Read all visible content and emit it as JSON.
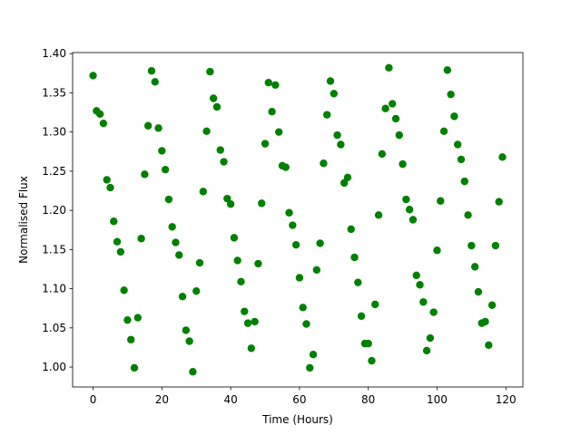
{
  "chart_data": {
    "type": "scatter",
    "x_label": "Time (Hours)",
    "y_label": "Normalised Flux",
    "color": "#008000",
    "x": [
      0,
      1,
      2,
      3,
      4,
      5,
      6,
      7,
      8,
      9,
      10,
      11,
      12,
      13,
      14,
      15,
      16,
      17,
      18,
      19,
      20,
      21,
      22,
      23,
      24,
      25,
      26,
      27,
      28,
      29,
      30,
      31,
      32,
      33,
      34,
      35,
      36,
      37,
      38,
      39,
      40,
      41,
      42,
      43,
      44,
      45,
      46,
      47,
      48,
      49,
      50,
      51,
      52,
      53,
      54,
      55,
      56,
      57,
      58,
      59,
      60,
      61,
      62,
      63,
      64,
      65,
      66,
      67,
      68,
      69,
      70,
      71,
      72,
      73,
      74,
      75,
      76,
      77,
      78,
      79,
      80,
      81,
      82,
      83,
      84,
      85,
      86,
      87,
      88,
      89,
      90,
      91,
      92,
      93,
      94,
      95,
      96,
      97,
      98,
      99,
      100,
      101,
      102,
      103,
      104,
      105,
      106,
      107,
      108,
      109,
      110,
      111,
      112,
      113,
      114,
      115,
      116,
      117,
      118,
      119
    ],
    "values": [
      1.372,
      1.327,
      1.323,
      1.311,
      1.239,
      1.229,
      1.186,
      1.16,
      1.147,
      1.098,
      1.06,
      1.035,
      0.999,
      1.063,
      1.164,
      1.246,
      1.308,
      1.378,
      1.364,
      1.305,
      1.276,
      1.252,
      1.214,
      1.179,
      1.159,
      1.143,
      1.09,
      1.047,
      1.033,
      0.994,
      1.097,
      1.133,
      1.224,
      1.301,
      1.377,
      1.343,
      1.332,
      1.277,
      1.262,
      1.215,
      1.208,
      1.165,
      1.136,
      1.109,
      1.071,
      1.056,
      1.024,
      1.058,
      1.132,
      1.209,
      1.285,
      1.363,
      1.326,
      1.36,
      1.3,
      1.257,
      1.255,
      1.197,
      1.181,
      1.156,
      1.114,
      1.076,
      1.055,
      0.999,
      1.016,
      1.124,
      1.158,
      1.26,
      1.322,
      1.365,
      1.349,
      1.296,
      1.284,
      1.235,
      1.242,
      1.176,
      1.14,
      1.108,
      1.065,
      1.03,
      1.03,
      1.008,
      1.08,
      1.194,
      1.272,
      1.33,
      1.382,
      1.336,
      1.317,
      1.296,
      1.259,
      1.214,
      1.201,
      1.188,
      1.117,
      1.105,
      1.083,
      1.021,
      1.037,
      1.07,
      1.149,
      1.212,
      1.301,
      1.379,
      1.348,
      1.32,
      1.284,
      1.265,
      1.237,
      1.194,
      1.155,
      1.128,
      1.096,
      1.056,
      1.058,
      1.028,
      1.079,
      1.155,
      1.211,
      1.268
    ],
    "xlim": [
      -5.95,
      124.95
    ],
    "xticks": [
      0,
      20,
      40,
      60,
      80,
      100,
      120
    ],
    "ylim": [
      0.9746,
      1.4014
    ],
    "yticks": [
      {
        "value": 1.0,
        "label": "1.00"
      },
      {
        "value": 1.05,
        "label": "1.05"
      },
      {
        "value": 1.1,
        "label": "1.10"
      },
      {
        "value": 1.15,
        "label": "1.15"
      },
      {
        "value": 1.2,
        "label": "1.20"
      },
      {
        "value": 1.25,
        "label": "1.25"
      },
      {
        "value": 1.3,
        "label": "1.30"
      },
      {
        "value": 1.35,
        "label": "1.35"
      },
      {
        "value": 1.4,
        "label": "1.40"
      }
    ],
    "grid": false
  }
}
